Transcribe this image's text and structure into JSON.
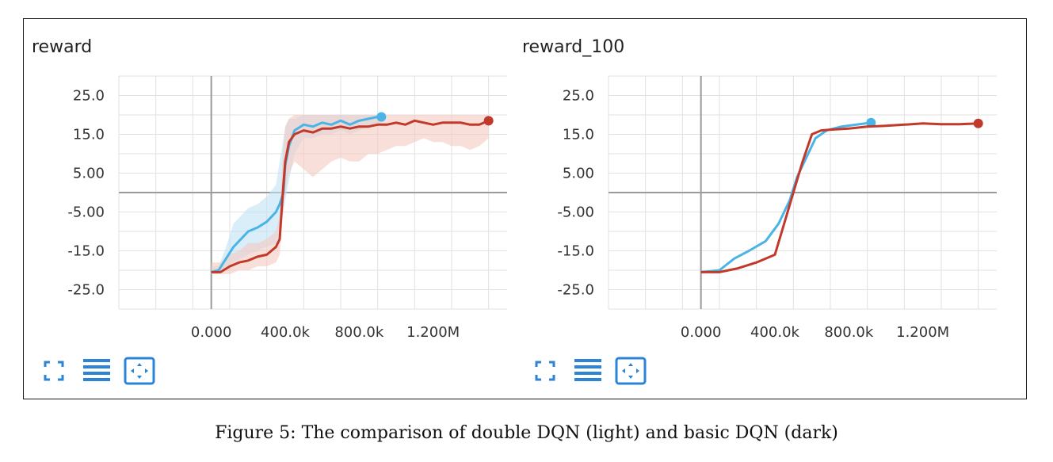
{
  "caption": "Figure 5: The comparison of double DQN (light) and basic DQN (dark)",
  "colors": {
    "light": "#4ab4e6",
    "dark": "#c0392b",
    "light_band": "#bfe3f5",
    "dark_band": "#f3c9c0",
    "grid": "#e2e2e2",
    "axis": "#9a9a9a",
    "icon": "#2b84d6"
  },
  "toolbar_icons": [
    "fullscreen-icon",
    "data-table-icon",
    "fit-domain-icon"
  ],
  "chart_data": [
    {
      "type": "line",
      "title": "reward",
      "xlabel": "",
      "ylabel": "",
      "xlim": [
        -500000,
        1600000
      ],
      "ylim": [
        -30,
        30
      ],
      "x_ticks": [
        0,
        400000,
        800000,
        1200000
      ],
      "x_tick_labels": [
        "0.000",
        "400.0k",
        "800.0k",
        "1.200M"
      ],
      "y_ticks": [
        25,
        15,
        5,
        -5,
        -15,
        -25
      ],
      "y_tick_labels": [
        "25.0",
        "15.0",
        "5.00",
        "-5.00",
        "-15.0",
        "-25.0"
      ],
      "grid": true,
      "series": [
        {
          "style": "light",
          "x": [
            0,
            40000,
            80000,
            120000,
            160000,
            200000,
            250000,
            300000,
            350000,
            370000,
            390000,
            400000,
            420000,
            450000,
            500000,
            550000,
            600000,
            650000,
            700000,
            750000,
            800000,
            850000,
            900000,
            920000
          ],
          "y": [
            -20.5,
            -20,
            -17,
            -14,
            -12,
            -10,
            -9,
            -7.5,
            -5,
            -3,
            0,
            7,
            12,
            16,
            17.5,
            17,
            18,
            17.5,
            18.5,
            17.5,
            18.5,
            19,
            19.5,
            19.5
          ],
          "band_low": [
            -21,
            -21,
            -19,
            -18,
            -17,
            -16,
            -15,
            -14,
            -13,
            -10,
            -5,
            -2,
            3,
            10,
            14,
            14,
            15,
            15,
            16,
            15,
            16,
            17,
            17.5,
            18
          ],
          "band_high": [
            -19,
            -19,
            -14,
            -8,
            -6,
            -4,
            -3,
            -1,
            2,
            8,
            14,
            17,
            19,
            19,
            20,
            20,
            20,
            20,
            20,
            20,
            20,
            20,
            20,
            20
          ]
        },
        {
          "style": "dark",
          "x": [
            0,
            50000,
            100000,
            150000,
            200000,
            250000,
            300000,
            350000,
            370000,
            380000,
            390000,
            400000,
            420000,
            450000,
            500000,
            550000,
            600000,
            650000,
            700000,
            750000,
            800000,
            850000,
            900000,
            950000,
            1000000,
            1050000,
            1100000,
            1150000,
            1200000,
            1250000,
            1300000,
            1350000,
            1400000,
            1450000,
            1500000
          ],
          "y": [
            -20.5,
            -20.5,
            -19,
            -18,
            -17.5,
            -16.5,
            -16,
            -14,
            -12,
            -5,
            2,
            8,
            13,
            15,
            16,
            15.5,
            16.5,
            16.5,
            17,
            16.5,
            17,
            17,
            17.5,
            17.5,
            18,
            17.5,
            18.5,
            18,
            17.5,
            18,
            18,
            18,
            17.5,
            17.5,
            18.5
          ],
          "band_low": [
            -21,
            -21,
            -21,
            -20,
            -20,
            -19,
            -19,
            -18,
            -16,
            -10,
            -4,
            0,
            5,
            8,
            6,
            4,
            6,
            8,
            9,
            8,
            8,
            10,
            10,
            11,
            12,
            12,
            13,
            14,
            13,
            13,
            12,
            12,
            11,
            12,
            14
          ],
          "band_high": [
            -18,
            -18,
            -16,
            -15,
            -13,
            -13,
            -12,
            -10,
            -6,
            4,
            12,
            17,
            19,
            20,
            20,
            20,
            20,
            20,
            20,
            20,
            20,
            20,
            20,
            20,
            20,
            20,
            20,
            20,
            20,
            20,
            20,
            20,
            20,
            20,
            20
          ]
        }
      ]
    },
    {
      "type": "line",
      "title": "reward_100",
      "xlabel": "",
      "ylabel": "",
      "xlim": [
        -500000,
        1600000
      ],
      "ylim": [
        -30,
        30
      ],
      "x_ticks": [
        0,
        400000,
        800000,
        1200000
      ],
      "x_tick_labels": [
        "0.000",
        "400.0k",
        "800.0k",
        "1.200M"
      ],
      "y_ticks": [
        25,
        15,
        5,
        -5,
        -15,
        -25
      ],
      "y_tick_labels": [
        "25.0",
        "15.0",
        "5.00",
        "-5.00",
        "-15.0",
        "-25.0"
      ],
      "grid": true,
      "series": [
        {
          "style": "light",
          "x": [
            0,
            100000,
            180000,
            260000,
            350000,
            420000,
            480000,
            520000,
            560000,
            620000,
            680000,
            760000,
            840000,
            920000
          ],
          "y": [
            -20.5,
            -20,
            -17,
            -15,
            -12.5,
            -8,
            -2,
            4,
            8,
            14,
            16,
            17,
            17.5,
            18
          ]
        },
        {
          "style": "dark",
          "x": [
            0,
            100000,
            200000,
            300000,
            400000,
            450000,
            500000,
            550000,
            600000,
            650000,
            700000,
            800000,
            900000,
            1000000,
            1100000,
            1200000,
            1300000,
            1400000,
            1500000
          ],
          "y": [
            -20.5,
            -20.5,
            -19.5,
            -18,
            -16,
            -8,
            0,
            8,
            15,
            16,
            16.2,
            16.5,
            17,
            17.2,
            17.5,
            17.8,
            17.6,
            17.6,
            17.8
          ]
        }
      ]
    }
  ]
}
